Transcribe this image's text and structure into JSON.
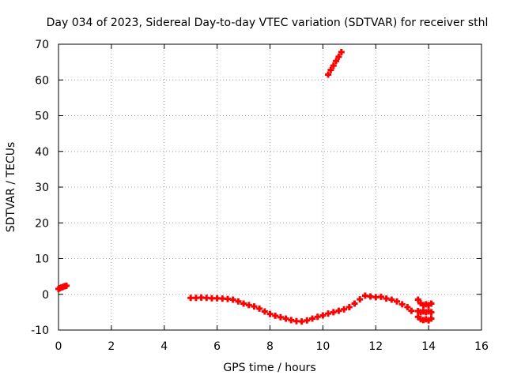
{
  "chart_data": {
    "type": "scatter",
    "title": "Day 034 of 2023, Sidereal Day-to-day VTEC variation (SDTVAR) for receiver sthl",
    "xlabel": "GPS time / hours",
    "ylabel": "SDTVAR / TECUs",
    "xlim": [
      0,
      16
    ],
    "ylim": [
      -10,
      70
    ],
    "xticks": [
      0,
      2,
      4,
      6,
      8,
      10,
      12,
      14,
      16
    ],
    "yticks": [
      -10,
      0,
      10,
      20,
      30,
      40,
      50,
      60,
      70
    ],
    "grid": true,
    "marker": "plus",
    "series": [
      {
        "name": "SDTVAR",
        "color": "#ff0000",
        "points": [
          [
            0.0,
            1.5
          ],
          [
            0.05,
            1.7
          ],
          [
            0.1,
            1.9
          ],
          [
            0.15,
            2.0
          ],
          [
            0.2,
            2.2
          ],
          [
            0.25,
            2.3
          ],
          [
            0.3,
            2.4
          ],
          [
            5.0,
            -1.0
          ],
          [
            5.2,
            -1.0
          ],
          [
            5.4,
            -0.9
          ],
          [
            5.6,
            -1.0
          ],
          [
            5.8,
            -1.1
          ],
          [
            6.0,
            -1.1
          ],
          [
            6.2,
            -1.2
          ],
          [
            6.4,
            -1.3
          ],
          [
            6.6,
            -1.5
          ],
          [
            6.8,
            -2.0
          ],
          [
            7.0,
            -2.6
          ],
          [
            7.2,
            -3.0
          ],
          [
            7.4,
            -3.4
          ],
          [
            7.6,
            -4.0
          ],
          [
            7.8,
            -4.8
          ],
          [
            8.0,
            -5.5
          ],
          [
            8.2,
            -6.0
          ],
          [
            8.4,
            -6.4
          ],
          [
            8.6,
            -6.8
          ],
          [
            8.8,
            -7.2
          ],
          [
            9.0,
            -7.5
          ],
          [
            9.2,
            -7.6
          ],
          [
            9.4,
            -7.3
          ],
          [
            9.6,
            -6.8
          ],
          [
            9.8,
            -6.3
          ],
          [
            10.0,
            -5.9
          ],
          [
            10.2,
            -5.4
          ],
          [
            10.4,
            -5.0
          ],
          [
            10.6,
            -4.6
          ],
          [
            10.8,
            -4.2
          ],
          [
            11.0,
            -3.6
          ],
          [
            11.2,
            -2.6
          ],
          [
            11.4,
            -1.4
          ],
          [
            11.6,
            -0.4
          ],
          [
            11.8,
            -0.6
          ],
          [
            12.0,
            -0.8
          ],
          [
            12.2,
            -0.7
          ],
          [
            12.4,
            -1.2
          ],
          [
            12.6,
            -1.5
          ],
          [
            12.8,
            -2.0
          ],
          [
            13.0,
            -2.8
          ],
          [
            13.2,
            -3.6
          ],
          [
            13.35,
            -4.6
          ],
          [
            13.6,
            -1.5
          ],
          [
            13.7,
            -2.5
          ],
          [
            13.8,
            -3.0
          ],
          [
            13.9,
            -2.8
          ],
          [
            14.0,
            -3.0
          ],
          [
            14.1,
            -2.6
          ],
          [
            13.6,
            -4.7
          ],
          [
            13.7,
            -5.0
          ],
          [
            13.8,
            -4.8
          ],
          [
            13.9,
            -5.0
          ],
          [
            14.0,
            -4.8
          ],
          [
            14.1,
            -5.0
          ],
          [
            13.6,
            -6.3
          ],
          [
            13.7,
            -7.0
          ],
          [
            13.8,
            -7.2
          ],
          [
            13.9,
            -7.0
          ],
          [
            14.0,
            -7.3
          ],
          [
            14.1,
            -6.8
          ],
          [
            10.2,
            61.5
          ],
          [
            10.3,
            62.8
          ],
          [
            10.4,
            64.0
          ],
          [
            10.5,
            65.3
          ],
          [
            10.6,
            66.5
          ],
          [
            10.7,
            67.8
          ]
        ]
      }
    ]
  }
}
